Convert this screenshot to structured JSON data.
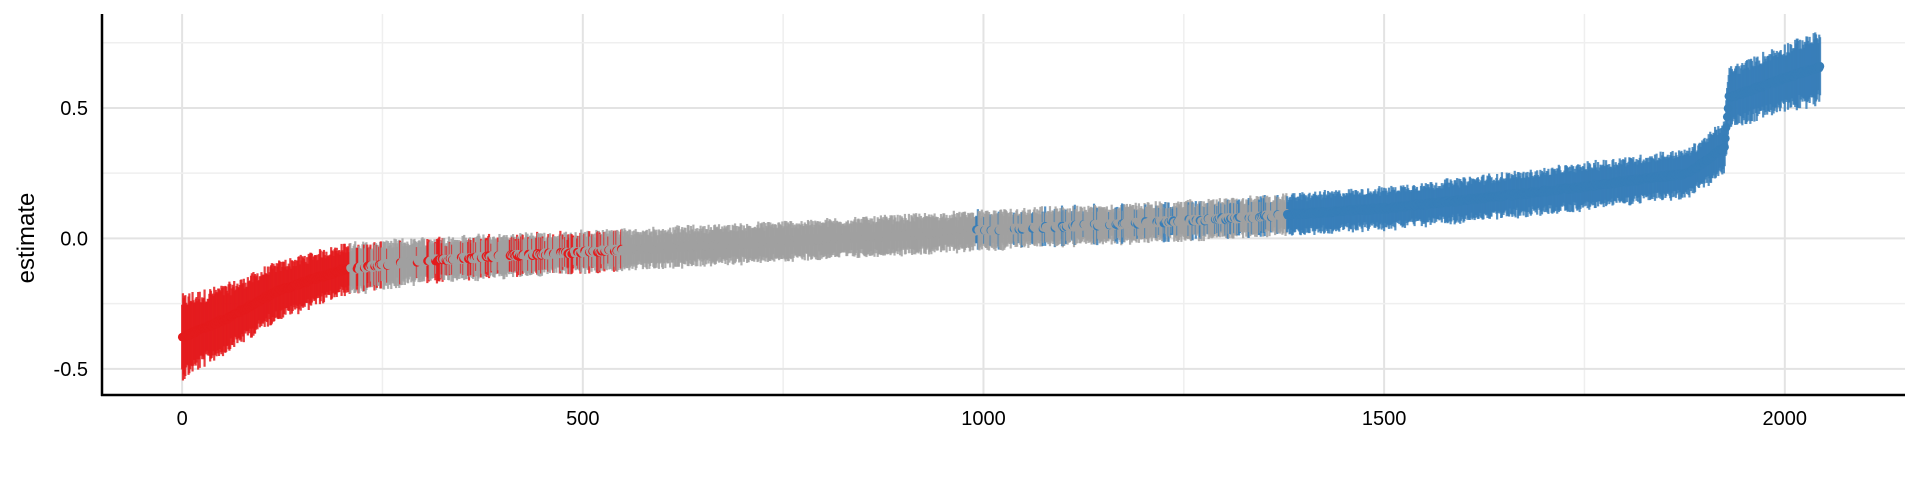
{
  "chart_data": {
    "type": "scatter",
    "title": "",
    "xlabel": "",
    "ylabel": "estimate",
    "xlim": [
      -100,
      2150
    ],
    "ylim": [
      -0.6,
      0.86
    ],
    "x_ticks": [
      0,
      500,
      1000,
      1500,
      2000
    ],
    "x_tick_labels": [
      "0",
      "500",
      "1000",
      "1500",
      "2000"
    ],
    "y_ticks": [
      -0.5,
      0.0,
      0.5
    ],
    "y_tick_labels": [
      "-0.5",
      "0.0",
      "0.5"
    ],
    "grid": true,
    "legend": "none",
    "n_points": 2045,
    "colors": {
      "negative": "#e41a1c",
      "neutral": "#a0a0a0",
      "positive": "#377eb8"
    },
    "curve": {
      "description_points_x": [
        0,
        60,
        120,
        200,
        300,
        450,
        700,
        1000,
        1300,
        1500,
        1700,
        1880,
        1925,
        1930,
        2045
      ],
      "description_points_y": [
        -0.38,
        -0.3,
        -0.2,
        -0.12,
        -0.085,
        -0.06,
        -0.02,
        0.03,
        0.075,
        0.115,
        0.18,
        0.25,
        0.35,
        0.54,
        0.66
      ],
      "ci_halfwidth": [
        0.14,
        0.11,
        0.095,
        0.085,
        0.075,
        0.07,
        0.065,
        0.065,
        0.065,
        0.07,
        0.075,
        0.08,
        0.085,
        0.1,
        0.12
      ]
    },
    "groups": [
      {
        "label": "negative",
        "x_range": [
          0,
          210
        ]
      },
      {
        "label": "negative",
        "x_range": [
          210,
          560
        ],
        "sparse": true
      },
      {
        "label": "neutral",
        "x_range": [
          210,
          1380
        ]
      },
      {
        "label": "positive",
        "x_range": [
          990,
          1380
        ],
        "sparse": true
      },
      {
        "label": "positive",
        "x_range": [
          1380,
          2045
        ]
      }
    ]
  }
}
